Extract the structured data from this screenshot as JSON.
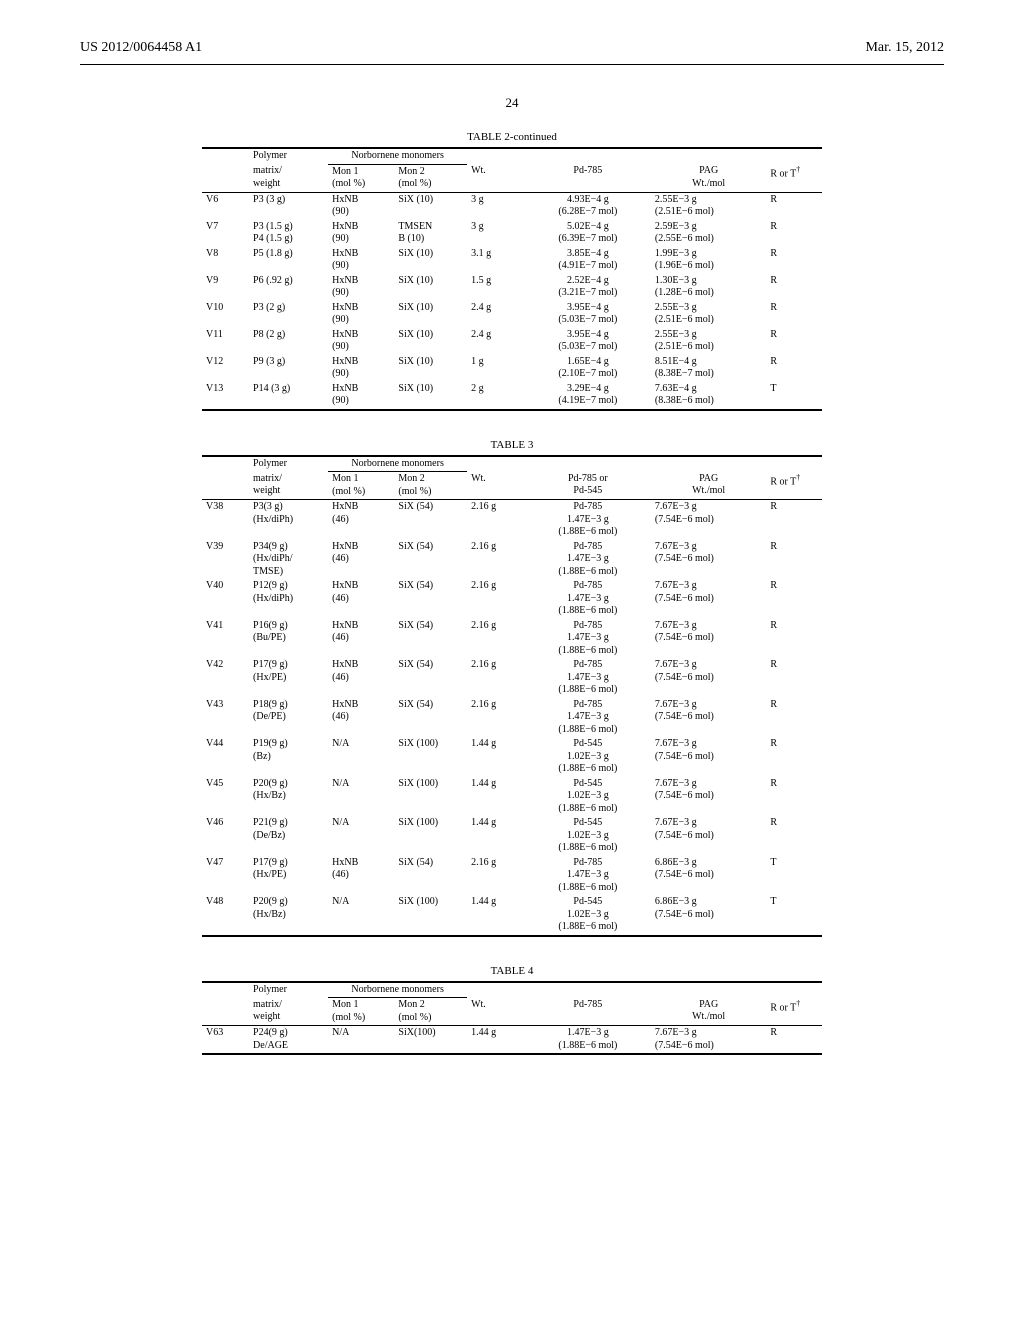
{
  "header": {
    "patent_no": "US 2012/0064458 A1",
    "date": "Mar. 15, 2012",
    "page_no": "24"
  },
  "groupHeaders": {
    "polymer": "Polymer",
    "monomers": "Norbornene monomers"
  },
  "colHeaders": {
    "matrix": "matrix/\nweight",
    "mon1": "Mon 1\n(mol %)",
    "mon2": "Mon 2\n(mol %)",
    "wt": "Wt.",
    "pd785": "Pd-785",
    "pd785or545": "Pd-785 or\nPd-545",
    "pag": "PAG\nWt./mol",
    "rt": "R or T"
  },
  "tables": [
    {
      "title": "TABLE 2-continued",
      "pdHeader": "pd785",
      "rows": [
        {
          "id": "V6",
          "poly": "P3 (3 g)",
          "mon1": "HxNB\n(90)",
          "mon2": "SiX (10)",
          "wt": "3   g",
          "pd": "4.93E−4  g\n(6.28E−7  mol)",
          "pag": "2.55E−3  g\n(2.51E−6  mol)",
          "rt": "R"
        },
        {
          "id": "V7",
          "poly": "P3 (1.5 g)\nP4 (1.5 g)",
          "mon1": "HxNB\n(90)",
          "mon2": "TMSEN\nB (10)",
          "wt": "3   g",
          "pd": "5.02E−4  g\n(6.39E−7  mol)",
          "pag": "2.59E−3  g\n(2.55E−6  mol)",
          "rt": "R"
        },
        {
          "id": "V8",
          "poly": "P5 (1.8 g)",
          "mon1": "HxNB\n(90)",
          "mon2": "SiX (10)",
          "wt": "3.1 g",
          "pd": "3.85E−4  g\n(4.91E−7  mol)",
          "pag": "1.99E−3  g\n(1.96E−6  mol)",
          "rt": "R"
        },
        {
          "id": "V9",
          "poly": "P6 (.92 g)",
          "mon1": "HxNB\n(90)",
          "mon2": "SiX (10)",
          "wt": "1.5 g",
          "pd": "2.52E−4  g\n(3.21E−7  mol)",
          "pag": "1.30E−3  g\n(1.28E−6  mol)",
          "rt": "R"
        },
        {
          "id": "V10",
          "poly": "P3 (2 g)",
          "mon1": "HxNB\n(90)",
          "mon2": "SiX (10)",
          "wt": "2.4 g",
          "pd": "3.95E−4  g\n(5.03E−7  mol)",
          "pag": "2.55E−3  g\n(2.51E−6  mol)",
          "rt": "R"
        },
        {
          "id": "V11",
          "poly": "P8 (2 g)",
          "mon1": "HxNB\n(90)",
          "mon2": "SiX (10)",
          "wt": "2.4 g",
          "pd": "3.95E−4  g\n(5.03E−7  mol)",
          "pag": "2.55E−3  g\n(2.51E−6  mol)",
          "rt": "R"
        },
        {
          "id": "V12",
          "poly": "P9 (3 g)",
          "mon1": "HxNB\n(90)",
          "mon2": "SiX (10)",
          "wt": "1   g",
          "pd": "1.65E−4  g\n(2.10E−7  mol)",
          "pag": "8.51E−4  g\n(8.38E−7  mol)",
          "rt": "R"
        },
        {
          "id": "V13",
          "poly": "P14 (3 g)",
          "mon1": "HxNB\n(90)",
          "mon2": "SiX (10)",
          "wt": "2   g",
          "pd": "3.29E−4  g\n(4.19E−7  mol)",
          "pag": "7.63E−4  g\n(8.38E−6  mol)",
          "rt": "T"
        }
      ]
    },
    {
      "title": "TABLE 3",
      "pdHeader": "pd785or545",
      "rows": [
        {
          "id": "V38",
          "poly": "P3(3 g)\n(Hx/diPh)",
          "mon1": "HxNB\n(46)",
          "mon2": "SiX (54)",
          "wt": "2.16 g",
          "pd": "Pd-785\n1.47E−3  g\n(1.88E−6  mol)",
          "pag": "7.67E−3  g\n(7.54E−6  mol)",
          "rt": "R"
        },
        {
          "id": "V39",
          "poly": "P34(9 g)\n(Hx/diPh/\nTMSE)",
          "mon1": "HxNB\n(46)",
          "mon2": "SiX (54)",
          "wt": "2.16 g",
          "pd": "Pd-785\n1.47E−3  g\n(1.88E−6  mol)",
          "pag": "7.67E−3  g\n(7.54E−6  mol)",
          "rt": "R"
        },
        {
          "id": "V40",
          "poly": "P12(9 g)\n(Hx/diPh)",
          "mon1": "HxNB\n(46)",
          "mon2": "SiX (54)",
          "wt": "2.16 g",
          "pd": "Pd-785\n1.47E−3  g\n(1.88E−6  mol)",
          "pag": "7.67E−3  g\n(7.54E−6  mol)",
          "rt": "R"
        },
        {
          "id": "V41",
          "poly": "P16(9 g)\n(Bu/PE)",
          "mon1": "HxNB\n(46)",
          "mon2": "SiX (54)",
          "wt": "2.16 g",
          "pd": "Pd-785\n1.47E−3  g\n(1.88E−6  mol)",
          "pag": "7.67E−3  g\n(7.54E−6  mol)",
          "rt": "R"
        },
        {
          "id": "V42",
          "poly": "P17(9 g)\n(Hx/PE)",
          "mon1": "HxNB\n(46)",
          "mon2": "SiX (54)",
          "wt": "2.16 g",
          "pd": "Pd-785\n1.47E−3  g\n(1.88E−6  mol)",
          "pag": "7.67E−3  g\n(7.54E−6  mol)",
          "rt": "R"
        },
        {
          "id": "V43",
          "poly": "P18(9 g)\n(De/PE)",
          "mon1": "HxNB\n(46)",
          "mon2": "SiX (54)",
          "wt": "2.16 g",
          "pd": "Pd-785\n1.47E−3  g\n(1.88E−6  mol)",
          "pag": "7.67E−3  g\n(7.54E−6  mol)",
          "rt": "R"
        },
        {
          "id": "V44",
          "poly": "P19(9 g)\n(Bz)",
          "mon1": "N/A",
          "mon2": "SiX (100)",
          "wt": "1.44 g",
          "pd": "Pd-545\n1.02E−3  g\n(1.88E−6  mol)",
          "pag": "7.67E−3  g\n(7.54E−6  mol)",
          "rt": "R"
        },
        {
          "id": "V45",
          "poly": "P20(9 g)\n(Hx/Bz)",
          "mon1": "N/A",
          "mon2": "SiX (100)",
          "wt": "1.44 g",
          "pd": "Pd-545\n1.02E−3  g\n(1.88E−6  mol)",
          "pag": "7.67E−3  g\n(7.54E−6  mol)",
          "rt": "R"
        },
        {
          "id": "V46",
          "poly": "P21(9 g)\n(De/Bz)",
          "mon1": "N/A",
          "mon2": "SiX (100)",
          "wt": "1.44 g",
          "pd": "Pd-545\n1.02E−3  g\n(1.88E−6  mol)",
          "pag": "7.67E−3  g\n(7.54E−6  mol)",
          "rt": "R"
        },
        {
          "id": "V47",
          "poly": "P17(9 g)\n(Hx/PE)",
          "mon1": "HxNB\n(46)",
          "mon2": "SiX (54)",
          "wt": "2.16 g",
          "pd": "Pd-785\n1.47E−3  g\n(1.88E−6  mol)",
          "pag": "6.86E−3  g\n(7.54E−6  mol)",
          "rt": "T"
        },
        {
          "id": "V48",
          "poly": "P20(9 g)\n(Hx/Bz)",
          "mon1": "N/A",
          "mon2": "SiX (100)",
          "wt": "1.44 g",
          "pd": "Pd-545\n1.02E−3  g\n(1.88E−6  mol)",
          "pag": "6.86E−3  g\n(7.54E−6  mol)",
          "rt": "T"
        }
      ]
    },
    {
      "title": "TABLE 4",
      "pdHeader": "pd785",
      "rows": [
        {
          "id": "V63",
          "poly": "P24(9 g)\nDe/AGE",
          "mon1": "N/A",
          "mon2": "SiX(100)",
          "wt": "1.44 g",
          "pd": "1.47E−3  g\n(1.88E−6  mol)",
          "pag": "7.67E−3  g\n(7.54E−6  mol)",
          "rt": "R"
        }
      ]
    }
  ]
}
